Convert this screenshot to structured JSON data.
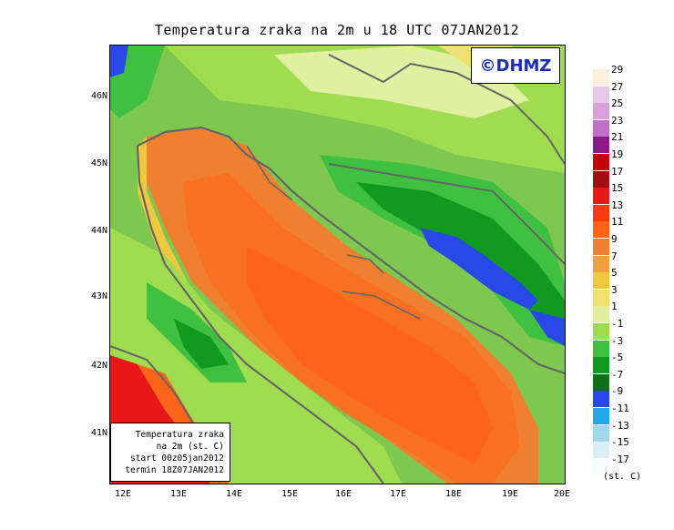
{
  "title": "Temperatura zraka na 2m u 18 UTC 07JAN2012",
  "logo": "©DHMZ",
  "info_box": {
    "line1": "Temperatura zraka",
    "line2": "na 2m (st. C)",
    "line3": "start 00z05jan2012",
    "line4": "termin 18Z07JAN2012"
  },
  "y_axis": [
    "46N",
    "45N",
    "44N",
    "43N",
    "42N",
    "41N"
  ],
  "x_axis": [
    "12E",
    "13E",
    "14E",
    "15E",
    "16E",
    "17E",
    "18E",
    "19E",
    "20E"
  ],
  "legend": {
    "unit": "(st. C)",
    "labels": [
      "29",
      "27",
      "25",
      "23",
      "21",
      "19",
      "17",
      "15",
      "13",
      "11",
      "9",
      "7",
      "5",
      "3",
      "1",
      "-1",
      "-3",
      "-5",
      "-7",
      "-9",
      "-11",
      "-13",
      "-15",
      "-17"
    ],
    "colors": [
      "#fdeede",
      "#e8c8e8",
      "#d8a0d8",
      "#c070c8",
      "#8a1a8a",
      "#c40000",
      "#a01010",
      "#e81818",
      "#ff3a10",
      "#ff6418",
      "#f08030",
      "#f0a040",
      "#f0c840",
      "#f0e070",
      "#e0f0a0",
      "#a0dc50",
      "#40c040",
      "#109a20",
      "#10701a",
      "#2848e8",
      "#20a8e8",
      "#a0d8e8",
      "#d8f0f4",
      "#f4fcfc"
    ]
  }
}
